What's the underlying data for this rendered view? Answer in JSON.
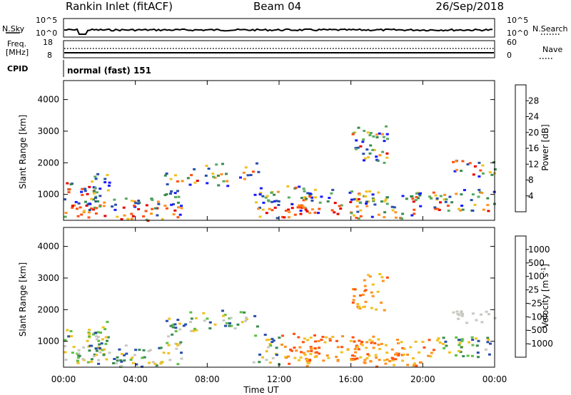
{
  "header": {
    "station": "Rankin Inlet (fitACF)",
    "beam": "Beam 04",
    "date": "26/Sep/2018"
  },
  "strip_nsky": {
    "left_label": "N.Sky",
    "right_label": "N.Search",
    "tick_top": "10^5",
    "tick_bottom": "10^0"
  },
  "strip_freq": {
    "left_label_1": "Freq.",
    "left_label_2": "[MHz]",
    "right_label": "Nave",
    "left_ticks": [
      "18",
      "8"
    ],
    "right_ticks": [
      "60",
      "0"
    ]
  },
  "cpid": {
    "label": "CPID",
    "text": "normal (fast) 151"
  },
  "colors": {
    "power_scale": [
      "#1a1aff",
      "#2a4faa",
      "#3a8a50",
      "#58aa60",
      "#f0c020",
      "#ff9020",
      "#ff5010",
      "#e80000"
    ],
    "velocity_scale": [
      "#e80000",
      "#ff5010",
      "#ff9020",
      "#f0c020",
      "#c8c8c0",
      "#5ac040",
      "#3a8a50",
      "#2a4faa"
    ]
  },
  "chart_data": [
    {
      "type": "heatmap",
      "name": "power",
      "ylabel": "Slant Range [km]",
      "yticks": [
        1000,
        2000,
        3000,
        4000
      ],
      "ylim": [
        180,
        4600
      ],
      "xlim": [
        0,
        24
      ],
      "xticks": [
        "00:00",
        "04:00",
        "08:00",
        "12:00",
        "16:00",
        "20:00",
        "00:00"
      ],
      "colorbar": {
        "label": "Power [dB]",
        "ticks": [
          "28",
          "24",
          "20",
          "16",
          "12",
          "8",
          "4"
        ],
        "range": [
          0,
          32
        ]
      }
    },
    {
      "type": "heatmap",
      "name": "velocity",
      "ylabel": "Slant Range [km]",
      "yticks": [
        1000,
        2000,
        3000,
        4000
      ],
      "ylim": [
        180,
        4600
      ],
      "xlim": [
        0,
        24
      ],
      "xticks": [
        "00:00",
        "04:00",
        "08:00",
        "12:00",
        "16:00",
        "20:00",
        "00:00"
      ],
      "xlabel": "Time UT",
      "colorbar": {
        "label": "Velocity [m s",
        "label_sup": "-1",
        "label_end": "]",
        "ticks": [
          "1000",
          "500",
          "100",
          "25",
          "-25",
          "-100",
          "-500",
          "-1000"
        ]
      }
    }
  ]
}
